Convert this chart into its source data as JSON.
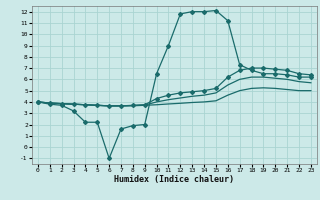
{
  "xlabel": "Humidex (Indice chaleur)",
  "bg_color": "#cce9e8",
  "grid_color": "#aad4d2",
  "line_color": "#1a6b6b",
  "xlim": [
    -0.5,
    23.5
  ],
  "ylim": [
    -1.5,
    12.5
  ],
  "xticks": [
    0,
    1,
    2,
    3,
    4,
    5,
    6,
    7,
    8,
    9,
    10,
    11,
    12,
    13,
    14,
    15,
    16,
    17,
    18,
    19,
    20,
    21,
    22,
    23
  ],
  "yticks": [
    -1,
    0,
    1,
    2,
    3,
    4,
    5,
    6,
    7,
    8,
    9,
    10,
    11,
    12
  ],
  "line_main": {
    "x": [
      0,
      1,
      2,
      3,
      4,
      5,
      6,
      7,
      8,
      9,
      10,
      11,
      12,
      13,
      14,
      15,
      16,
      17,
      18,
      19,
      20,
      21,
      22,
      23
    ],
    "y": [
      4.0,
      3.8,
      3.7,
      3.2,
      2.2,
      2.2,
      -1.0,
      1.6,
      1.9,
      2.0,
      6.5,
      9.0,
      11.8,
      12.0,
      12.0,
      12.1,
      11.2,
      7.3,
      6.8,
      6.5,
      6.5,
      6.4,
      6.2,
      6.2
    ]
  },
  "line_top": {
    "x": [
      0,
      1,
      2,
      3,
      4,
      5,
      6,
      7,
      8,
      9,
      10,
      11,
      12,
      13,
      14,
      15,
      16,
      17,
      18,
      19,
      20,
      21,
      22,
      23
    ],
    "y": [
      4.0,
      3.9,
      3.85,
      3.8,
      3.75,
      3.7,
      3.65,
      3.65,
      3.7,
      3.75,
      4.3,
      4.6,
      4.8,
      4.9,
      5.0,
      5.2,
      6.2,
      6.8,
      7.0,
      7.0,
      6.9,
      6.8,
      6.5,
      6.4
    ]
  },
  "line_mid": {
    "x": [
      0,
      1,
      2,
      3,
      4,
      5,
      6,
      7,
      8,
      9,
      10,
      11,
      12,
      13,
      14,
      15,
      16,
      17,
      18,
      19,
      20,
      21,
      22,
      23
    ],
    "y": [
      4.0,
      3.9,
      3.85,
      3.8,
      3.75,
      3.7,
      3.65,
      3.65,
      3.68,
      3.72,
      4.0,
      4.2,
      4.35,
      4.5,
      4.6,
      4.8,
      5.5,
      6.0,
      6.2,
      6.2,
      6.1,
      6.0,
      5.8,
      5.7
    ]
  },
  "line_bot": {
    "x": [
      0,
      1,
      2,
      3,
      4,
      5,
      6,
      7,
      8,
      9,
      10,
      11,
      12,
      13,
      14,
      15,
      16,
      17,
      18,
      19,
      20,
      21,
      22,
      23
    ],
    "y": [
      4.0,
      3.9,
      3.85,
      3.8,
      3.75,
      3.7,
      3.65,
      3.65,
      3.66,
      3.7,
      3.75,
      3.82,
      3.88,
      3.95,
      4.0,
      4.1,
      4.6,
      5.0,
      5.2,
      5.25,
      5.2,
      5.1,
      5.0,
      5.0
    ]
  }
}
